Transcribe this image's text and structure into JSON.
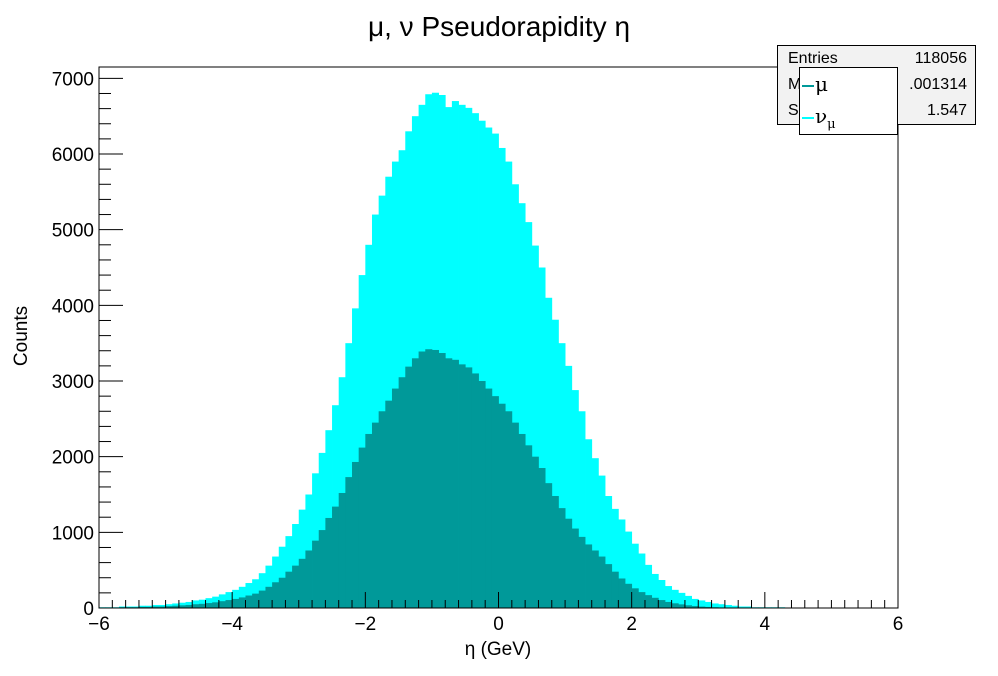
{
  "chart_data": {
    "type": "bar",
    "title": "μ, ν Pseudorapidity η",
    "xlabel": "η (GeV)",
    "ylabel": "Counts",
    "xlim": [
      -6,
      6
    ],
    "ylim": [
      0,
      7150
    ],
    "xticks": [
      "−6",
      "−4",
      "−2",
      "0",
      "2",
      "4",
      "6"
    ],
    "yticks": [
      "0",
      "1000",
      "2000",
      "3000",
      "4000",
      "5000",
      "6000",
      "7000"
    ],
    "bin_edges": {
      "start": -6,
      "end": 6,
      "count": 120
    },
    "grid": false,
    "legend_position": "top-right",
    "series": [
      {
        "name": "ν",
        "name_subscript": "μ",
        "color": "#00ffff",
        "values": [
          10,
          10,
          10,
          20,
          20,
          20,
          30,
          30,
          40,
          40,
          50,
          60,
          70,
          80,
          100,
          110,
          130,
          150,
          180,
          210,
          240,
          280,
          330,
          380,
          460,
          560,
          680,
          810,
          950,
          1110,
          1300,
          1500,
          1780,
          2050,
          2350,
          2680,
          3050,
          3500,
          3960,
          4400,
          4800,
          5200,
          5450,
          5700,
          5900,
          6050,
          6300,
          6500,
          6650,
          6790,
          6810,
          6780,
          6620,
          6700,
          6650,
          6610,
          6540,
          6440,
          6350,
          6270,
          6080,
          5900,
          5600,
          5350,
          5100,
          4790,
          4500,
          4100,
          3810,
          3500,
          3200,
          2880,
          2600,
          2230,
          1980,
          1750,
          1480,
          1310,
          1170,
          1010,
          850,
          720,
          570,
          450,
          370,
          290,
          240,
          200,
          160,
          120,
          100,
          80,
          60,
          50,
          40,
          30,
          20,
          20,
          10,
          10,
          10,
          10,
          10,
          5,
          5,
          5,
          5,
          5,
          5,
          5,
          5,
          5,
          5,
          5,
          5,
          5,
          5,
          5,
          5,
          5
        ]
      },
      {
        "name": "μ",
        "color": "#009999",
        "values": [
          5,
          5,
          5,
          10,
          10,
          10,
          15,
          15,
          20,
          20,
          25,
          30,
          35,
          40,
          50,
          55,
          65,
          75,
          90,
          105,
          120,
          140,
          165,
          190,
          230,
          280,
          340,
          400,
          480,
          560,
          650,
          760,
          890,
          1030,
          1190,
          1340,
          1520,
          1730,
          1930,
          2120,
          2300,
          2450,
          2600,
          2740,
          2900,
          3050,
          3190,
          3300,
          3390,
          3420,
          3410,
          3370,
          3300,
          3280,
          3220,
          3180,
          3100,
          3000,
          2900,
          2800,
          2700,
          2600,
          2450,
          2300,
          2150,
          2000,
          1850,
          1650,
          1480,
          1320,
          1180,
          1050,
          940,
          840,
          760,
          680,
          580,
          480,
          390,
          320,
          260,
          210,
          170,
          135,
          105,
          80,
          62,
          48,
          36,
          26,
          19,
          14,
          10,
          7,
          5,
          4,
          3,
          2,
          2,
          1,
          1,
          1,
          1,
          1,
          1,
          1,
          1,
          1,
          1,
          1,
          1,
          1,
          1,
          1,
          1,
          1,
          1,
          1,
          1,
          1
        ]
      }
    ]
  },
  "stats": {
    "rows": [
      {
        "key": "Entries",
        "value": "118056"
      },
      {
        "key": "M",
        "value": ".001314"
      },
      {
        "key": "S",
        "value": "1.547"
      }
    ]
  },
  "legend": [
    {
      "label": "μ",
      "sub": "",
      "color": "#009999"
    },
    {
      "label": "ν",
      "sub": "μ",
      "color": "#00ffff"
    }
  ]
}
